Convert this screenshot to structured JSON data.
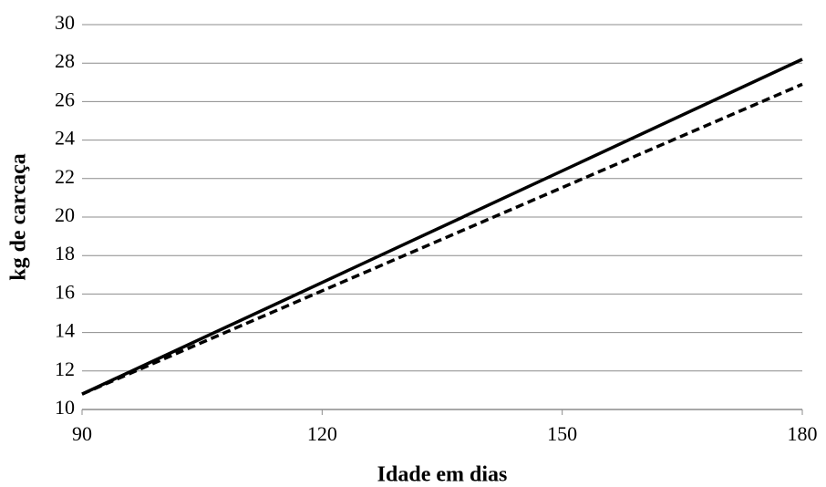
{
  "chart_data": {
    "type": "line",
    "x_label": "Idade em dias",
    "y_label": "kg de carcaça",
    "x": [
      90,
      180
    ],
    "series": [
      {
        "color": "#000000",
        "dash": "solid",
        "values": [
          10.8,
          28.2
        ]
      },
      {
        "color": "#000000",
        "dash": "dashed",
        "values": [
          10.8,
          26.9
        ]
      }
    ],
    "xlim": [
      90,
      180
    ],
    "xticks": [
      90,
      120,
      150,
      180
    ],
    "ylim": [
      10,
      30
    ],
    "yticks": [
      10,
      12,
      14,
      16,
      18,
      20,
      22,
      24,
      26,
      28,
      30
    ],
    "grid": true
  }
}
